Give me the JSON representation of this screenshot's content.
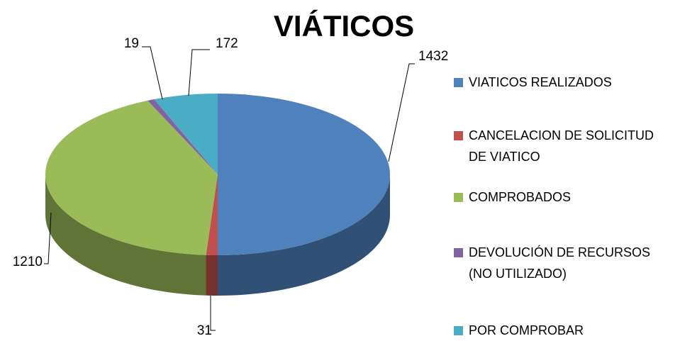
{
  "chart_data": {
    "type": "pie3d",
    "title": "VIÁTICOS",
    "categories": [
      "VIATICOS REALIZADOS",
      "CANCELACION DE SOLICITUD DE VIATICO",
      "COMPROBADOS",
      "DEVOLUCIÓN DE RECURSOS (NO UTILIZADO)",
      "POR COMPROBAR"
    ],
    "values": [
      1432,
      31,
      1210,
      19,
      172
    ],
    "colors": [
      "#4f81bd",
      "#c0504d",
      "#9bbb59",
      "#8064a2",
      "#4bacc6"
    ],
    "legend": "right"
  }
}
